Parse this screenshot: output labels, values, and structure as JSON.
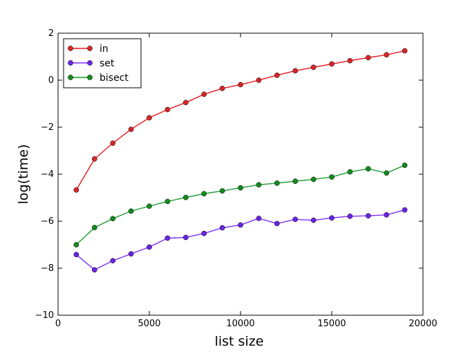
{
  "chart_data": {
    "type": "line",
    "title": "",
    "xlabel": "list size",
    "ylabel": "log(time)",
    "xlim": [
      0,
      20000
    ],
    "ylim": [
      -10,
      2
    ],
    "xticks": [
      0,
      5000,
      10000,
      15000,
      20000
    ],
    "yticks": [
      -10,
      -8,
      -6,
      -4,
      -2,
      0,
      2
    ],
    "xtick_labels": [
      "0",
      "5000",
      "10000",
      "15000",
      "20000"
    ],
    "ytick_labels": [
      "−10",
      "−8",
      "−6",
      "−4",
      "−2",
      "0",
      "2"
    ],
    "grid": false,
    "legend_position": "top-left",
    "x": [
      1000,
      2000,
      3000,
      4000,
      5000,
      6000,
      7000,
      8000,
      9000,
      10000,
      11000,
      12000,
      13000,
      14000,
      15000,
      16000,
      17000,
      18000,
      19000
    ],
    "series": [
      {
        "name": "in",
        "color": "#e8141c",
        "marker_color": "#d62728",
        "values": [
          -4.67,
          -3.35,
          -2.68,
          -2.09,
          -1.6,
          -1.25,
          -0.95,
          -0.6,
          -0.35,
          -0.19,
          0.0,
          0.21,
          0.4,
          0.55,
          0.69,
          0.83,
          0.96,
          1.08,
          1.25
        ]
      },
      {
        "name": "set",
        "color": "#7b2ff7",
        "marker_color": "#6a24e6",
        "values": [
          -7.42,
          -8.07,
          -7.68,
          -7.39,
          -7.1,
          -6.72,
          -6.69,
          -6.52,
          -6.28,
          -6.16,
          -5.88,
          -6.1,
          -5.92,
          -5.96,
          -5.86,
          -5.79,
          -5.77,
          -5.73,
          -5.52
        ]
      },
      {
        "name": "bisect",
        "color": "#1a9a2e",
        "marker_color": "#138a1e",
        "values": [
          -7.0,
          -6.27,
          -5.89,
          -5.57,
          -5.36,
          -5.16,
          -4.99,
          -4.83,
          -4.71,
          -4.58,
          -4.45,
          -4.38,
          -4.3,
          -4.22,
          -4.12,
          -3.9,
          -3.77,
          -3.95,
          -3.62
        ]
      }
    ]
  }
}
